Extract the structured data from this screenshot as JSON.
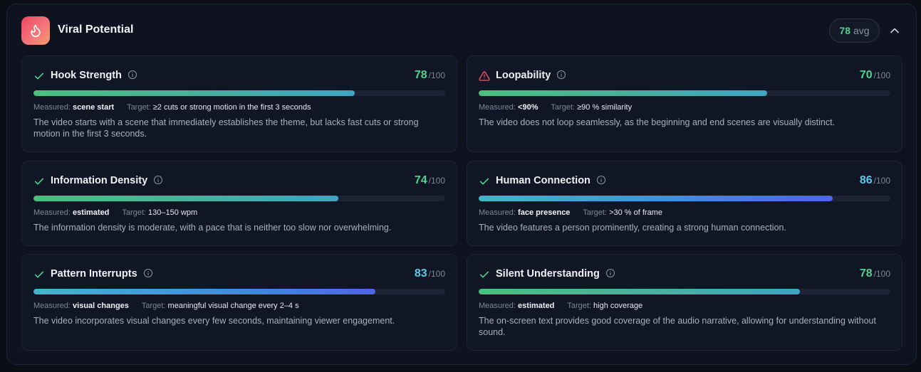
{
  "header": {
    "title": "Viral Potential",
    "avg_value": "78",
    "avg_label": "avg"
  },
  "labels": {
    "measured": "Measured:",
    "target": "Target:",
    "max": "/100"
  },
  "colors": {
    "accent_green": "#4fd28f",
    "accent_blue": "#5ac8e6",
    "warning": "#f0556a"
  },
  "cards": [
    {
      "title": "Hook Strength",
      "status": "check",
      "score": "78",
      "progress": 78,
      "tone": "green",
      "measured": "scene start",
      "target": "≥2 cuts or strong motion in the first 3 seconds",
      "description": "The video starts with a scene that immediately establishes the theme, but lacks fast cuts or strong motion in the first 3 seconds."
    },
    {
      "title": "Loopability",
      "status": "warning",
      "score": "70",
      "progress": 70,
      "tone": "green",
      "measured": "<90%",
      "target": "≥90 % similarity",
      "description": "The video does not loop seamlessly, as the beginning and end scenes are visually distinct."
    },
    {
      "title": "Information Density",
      "status": "check",
      "score": "74",
      "progress": 74,
      "tone": "green",
      "measured": "estimated",
      "target": "130–150 wpm",
      "description": "The information density is moderate, with a pace that is neither too slow nor overwhelming."
    },
    {
      "title": "Human Connection",
      "status": "check",
      "score": "86",
      "progress": 86,
      "tone": "blue",
      "measured": "face presence",
      "target": ">30 % of frame",
      "description": "The video features a person prominently, creating a strong human connection."
    },
    {
      "title": "Pattern Interrupts",
      "status": "check",
      "score": "83",
      "progress": 83,
      "tone": "blue",
      "measured": "visual changes",
      "target": "meaningful visual change every 2–4 s",
      "description": "The video incorporates visual changes every few seconds, maintaining viewer engagement."
    },
    {
      "title": "Silent Understanding",
      "status": "check",
      "score": "78",
      "progress": 78,
      "tone": "green",
      "measured": "estimated",
      "target": "high coverage",
      "description": "The on-screen text provides good coverage of the audio narrative, allowing for understanding without sound."
    }
  ]
}
